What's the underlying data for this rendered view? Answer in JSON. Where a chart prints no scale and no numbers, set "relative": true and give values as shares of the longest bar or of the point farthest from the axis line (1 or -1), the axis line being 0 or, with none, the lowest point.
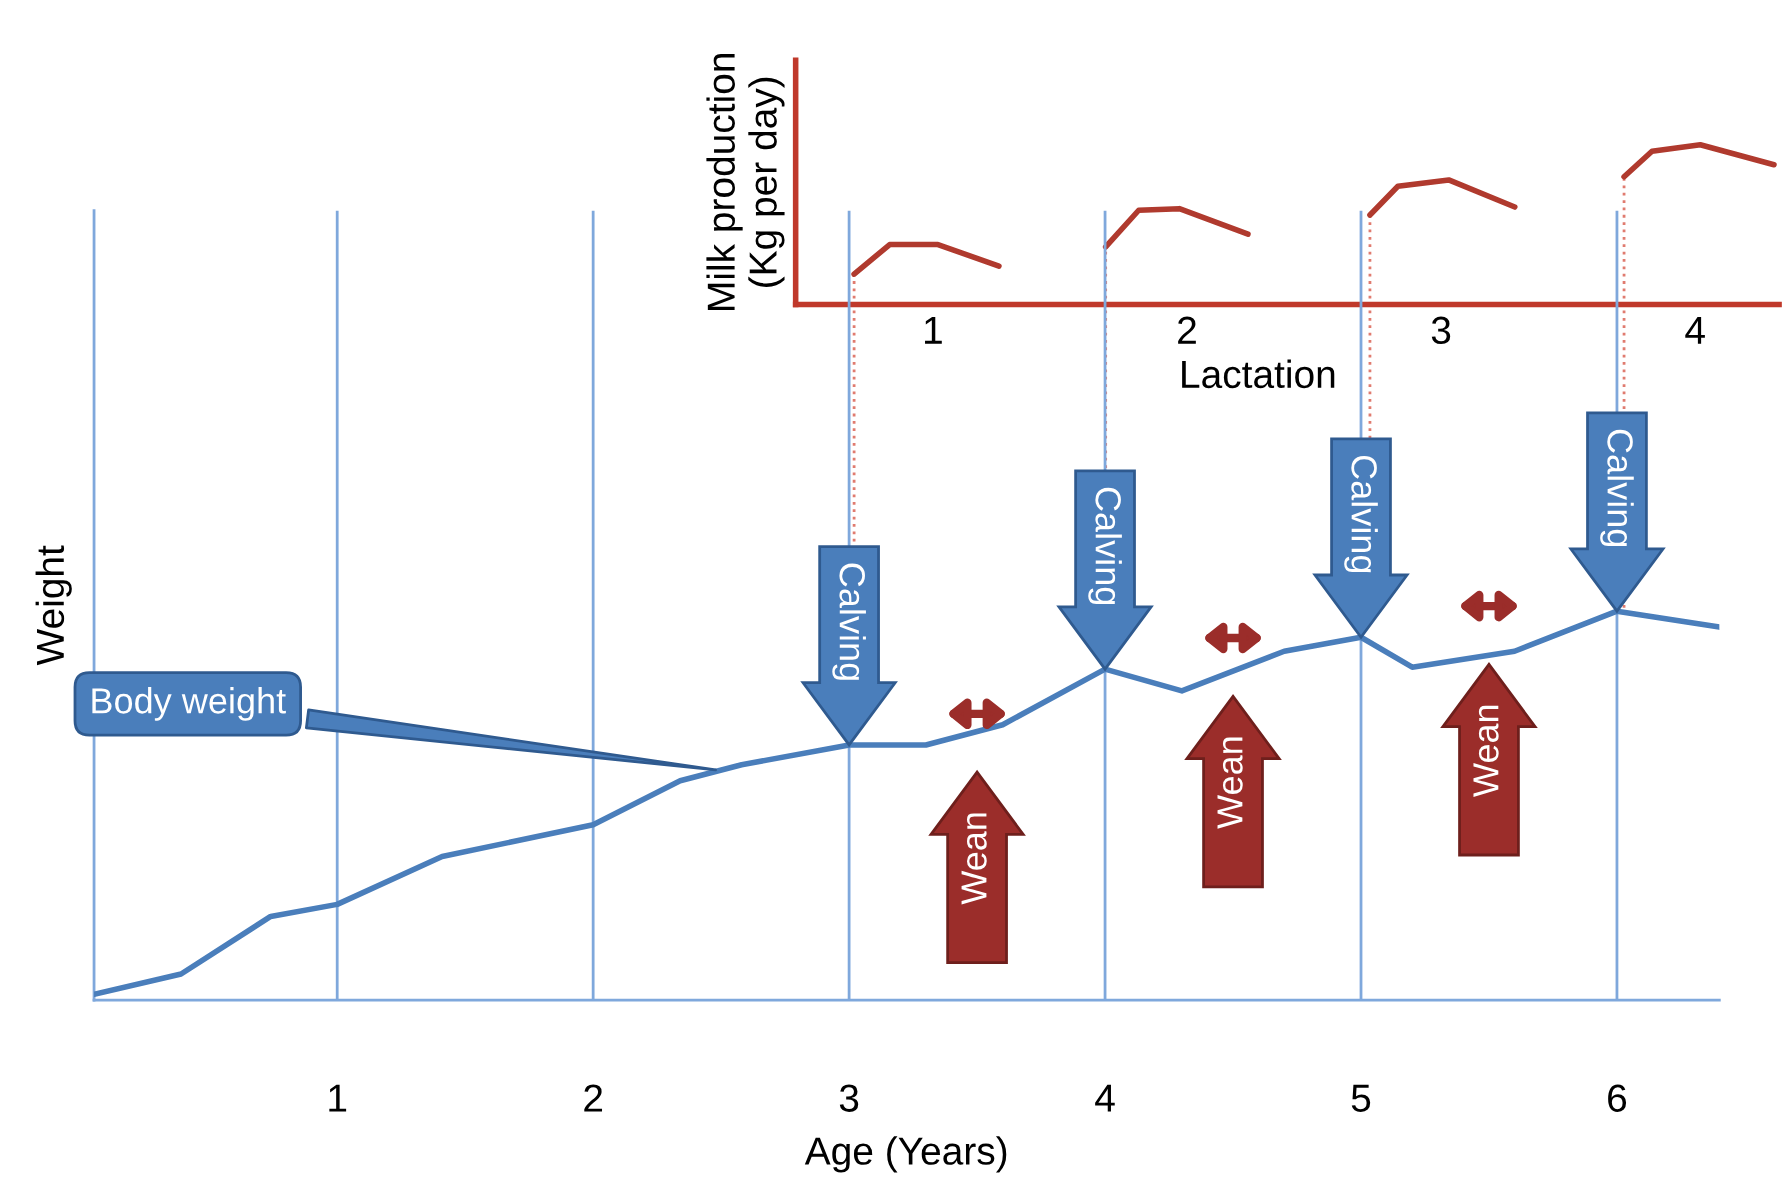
{
  "chart_data": [
    {
      "type": "line",
      "relative": true,
      "xlabel": "Age (Years)",
      "ylabel": "Weight",
      "xlim": [
        0.05,
        6.4
      ],
      "xticks": [
        1,
        2,
        3,
        4,
        5,
        6
      ],
      "grid": "x",
      "series": [
        {
          "color": "#4a7ebb",
          "x": [
            0.05,
            0.39,
            0.74,
            1.0,
            1.41,
            2.0,
            2.34,
            2.58,
            3.0,
            3.3,
            3.6,
            4.0,
            4.3,
            4.7,
            5.0,
            5.2,
            5.6,
            6.0,
            6.4
          ],
          "values": [
            0.015,
            0.067,
            0.215,
            0.246,
            0.369,
            0.451,
            0.564,
            0.605,
            0.656,
            0.656,
            0.708,
            0.851,
            0.795,
            0.897,
            0.933,
            0.856,
            0.897,
            1.0,
            0.959
          ]
        }
      ],
      "annotations": [
        {
          "text": "Body weight",
          "x": 2.5,
          "y": 0.59
        },
        {
          "text": "Calving",
          "x": 3,
          "y": 0.656
        },
        {
          "text": "Calving",
          "x": 4,
          "y": 0.851
        },
        {
          "text": "Calving",
          "x": 5,
          "y": 0.933
        },
        {
          "text": "Calving",
          "x": 6,
          "y": 1.0
        },
        "Wean",
        "Wean",
        "Wean"
      ]
    },
    {
      "type": "line",
      "relative": true,
      "xlabel": "Lactation",
      "ylabel": "Milk production\n(Kg per day)",
      "xlim": [
        0.46,
        4.33
      ],
      "xticks": [
        1,
        2,
        3,
        4
      ],
      "ref_lines": [
        {
          "axis": "x",
          "value": 0.69,
          "color": "#e07b6f",
          "line_style": "dotted"
        },
        {
          "axis": "x",
          "value": 1.68,
          "color": "#e07b6f",
          "line_style": "dotted"
        },
        {
          "axis": "x",
          "value": 2.72,
          "color": "#e07b6f",
          "line_style": "dotted"
        },
        {
          "axis": "x",
          "value": 3.72,
          "color": "#e07b6f",
          "line_style": "dotted"
        }
      ],
      "series": [
        {
          "color": "#b03a2e",
          "x": [
            0.69,
            0.83,
            1.02,
            1.26
          ],
          "values": [
            0.19,
            0.375,
            0.375,
            0.24
          ]
        },
        {
          "color": "#b03a2e",
          "x": [
            1.68,
            1.81,
            1.97,
            2.24
          ],
          "values": [
            0.36,
            0.59,
            0.6,
            0.44
          ]
        },
        {
          "color": "#b03a2e",
          "x": [
            2.72,
            2.83,
            3.03,
            3.29
          ],
          "values": [
            0.56,
            0.74,
            0.78,
            0.61
          ]
        },
        {
          "color": "#b03a2e",
          "x": [
            3.72,
            3.83,
            4.02,
            4.31
          ],
          "values": [
            0.8,
            0.96,
            1.0,
            0.875
          ]
        }
      ]
    }
  ]
}
